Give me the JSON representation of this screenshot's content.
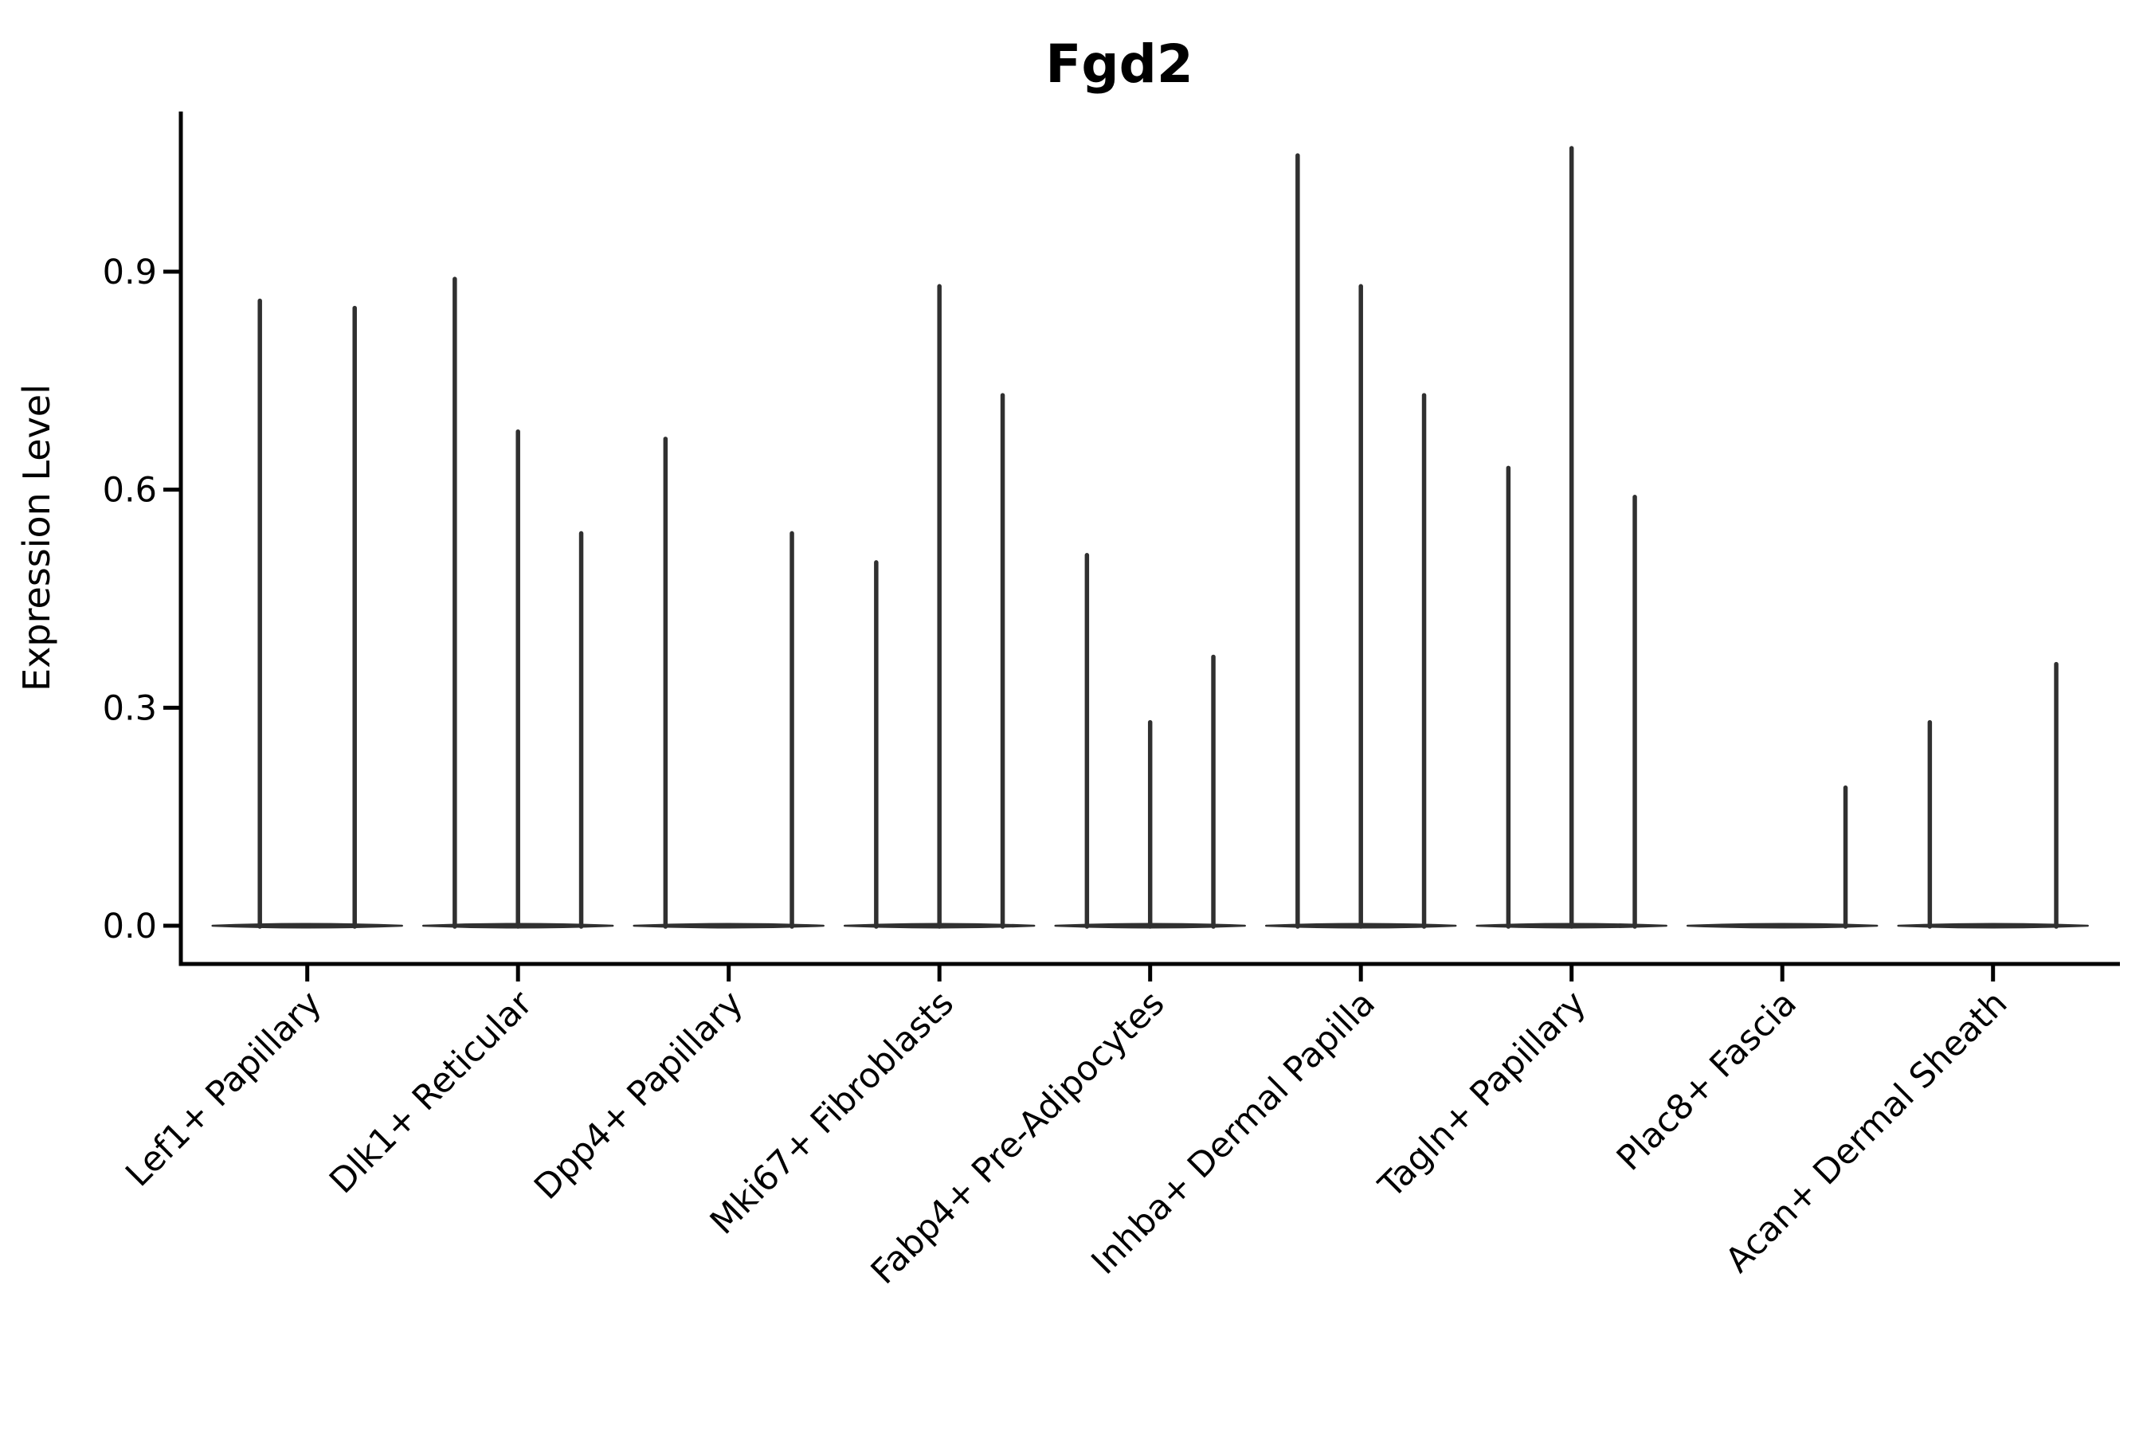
{
  "chart_data": {
    "type": "violin",
    "title": "Fgd2",
    "ylabel": "Expression Level",
    "xlabel": "",
    "legend": "none",
    "grid": false,
    "background": "#ffffff",
    "axis_color": "#000000",
    "violin_color": "#303030",
    "ylim": [
      -0.055,
      1.12
    ],
    "ytick_values": [
      0.0,
      0.3,
      0.6,
      0.9
    ],
    "ytick_labels": [
      "0.0",
      "0.3",
      "0.6",
      "0.9"
    ],
    "xtick_rotation_deg": 45,
    "categories": [
      "Lef1+ Papillary",
      "Dlk1+ Reticular",
      "Dpp4+ Papillary",
      "Mki67+ Fibroblasts",
      "Fabp4+ Pre-Adipocytes",
      "Inhba+ Dermal Papilla",
      "Tagln+ Papillary",
      "Plac8+ Fascia",
      "Acan+ Dermal Sheath"
    ],
    "violins": [
      {
        "category": "Lef1+ Papillary",
        "points": [
          {
            "offset": -0.225,
            "width": 0.45,
            "max": 0.86
          },
          {
            "offset": 0.225,
            "width": 0.45,
            "max": 0.85
          }
        ]
      },
      {
        "category": "Dlk1+ Reticular",
        "points": [
          {
            "offset": -0.3,
            "width": 0.3,
            "max": 0.89
          },
          {
            "offset": 0.0,
            "width": 0.3,
            "max": 0.68
          },
          {
            "offset": 0.3,
            "width": 0.3,
            "max": 0.54
          }
        ]
      },
      {
        "category": "Dpp4+ Papillary",
        "points": [
          {
            "offset": -0.3,
            "width": 0.3,
            "max": 0.67
          },
          {
            "offset": 0.0,
            "width": 0.3,
            "max": 0.0
          },
          {
            "offset": 0.3,
            "width": 0.3,
            "max": 0.54
          }
        ]
      },
      {
        "category": "Mki67+ Fibroblasts",
        "points": [
          {
            "offset": -0.3,
            "width": 0.3,
            "max": 0.5
          },
          {
            "offset": 0.0,
            "width": 0.3,
            "max": 0.88
          },
          {
            "offset": 0.3,
            "width": 0.3,
            "max": 0.73
          }
        ]
      },
      {
        "category": "Fabp4+ Pre-Adipocytes",
        "points": [
          {
            "offset": -0.3,
            "width": 0.3,
            "max": 0.51
          },
          {
            "offset": 0.0,
            "width": 0.3,
            "max": 0.28
          },
          {
            "offset": 0.3,
            "width": 0.3,
            "max": 0.37
          }
        ]
      },
      {
        "category": "Inhba+ Dermal Papilla",
        "points": [
          {
            "offset": -0.3,
            "width": 0.3,
            "max": 1.06
          },
          {
            "offset": 0.0,
            "width": 0.3,
            "max": 0.88
          },
          {
            "offset": 0.3,
            "width": 0.3,
            "max": 0.73
          }
        ]
      },
      {
        "category": "Tagln+ Papillary",
        "points": [
          {
            "offset": -0.3,
            "width": 0.3,
            "max": 0.63
          },
          {
            "offset": 0.0,
            "width": 0.3,
            "max": 1.07
          },
          {
            "offset": 0.3,
            "width": 0.3,
            "max": 0.59
          }
        ]
      },
      {
        "category": "Plac8+ Fascia",
        "points": [
          {
            "offset": -0.3,
            "width": 0.3,
            "max": 0.0
          },
          {
            "offset": 0.0,
            "width": 0.3,
            "max": 0.0
          },
          {
            "offset": 0.3,
            "width": 0.3,
            "max": 0.19
          }
        ]
      },
      {
        "category": "Acan+ Dermal Sheath",
        "points": [
          {
            "offset": -0.3,
            "width": 0.3,
            "max": 0.28
          },
          {
            "offset": 0.0,
            "width": 0.3,
            "max": 0.0
          },
          {
            "offset": 0.3,
            "width": 0.3,
            "max": 0.36
          }
        ]
      }
    ]
  }
}
